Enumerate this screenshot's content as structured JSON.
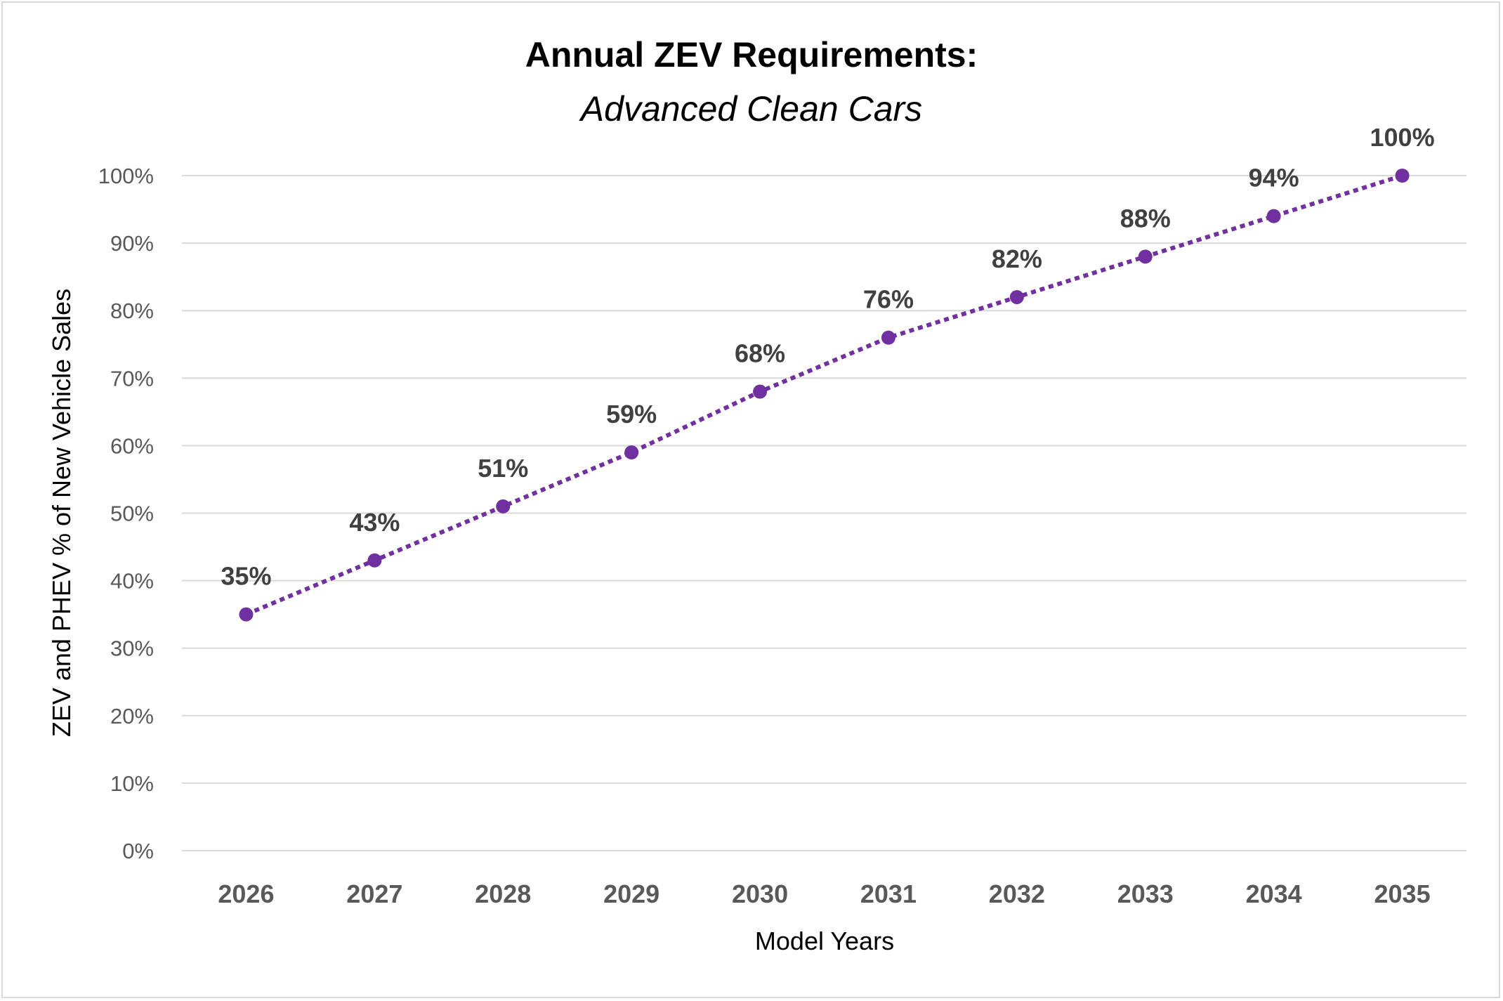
{
  "chart_data": {
    "type": "line",
    "title": "Annual ZEV Requirements:",
    "subtitle": "Advanced Clean Cars",
    "xlabel": "Model Years",
    "ylabel": "ZEV and PHEV % of New Vehicle Sales",
    "categories": [
      "2026",
      "2027",
      "2028",
      "2029",
      "2030",
      "2031",
      "2032",
      "2033",
      "2034",
      "2035"
    ],
    "series": [
      {
        "values": [
          35,
          43,
          51,
          59,
          68,
          76,
          82,
          88,
          94,
          100
        ],
        "data_labels": [
          "35%",
          "43%",
          "51%",
          "59%",
          "68%",
          "76%",
          "82%",
          "88%",
          "94%",
          "100%"
        ],
        "color": "#7030a0",
        "line_style": "dotted",
        "marker": "circle"
      }
    ],
    "ylim": [
      0,
      100
    ],
    "yticks": [
      0,
      10,
      20,
      30,
      40,
      50,
      60,
      70,
      80,
      90,
      100
    ],
    "ytick_labels": [
      "0%",
      "10%",
      "20%",
      "30%",
      "40%",
      "50%",
      "60%",
      "70%",
      "80%",
      "90%",
      "100%"
    ],
    "grid": true,
    "legend": "none"
  }
}
